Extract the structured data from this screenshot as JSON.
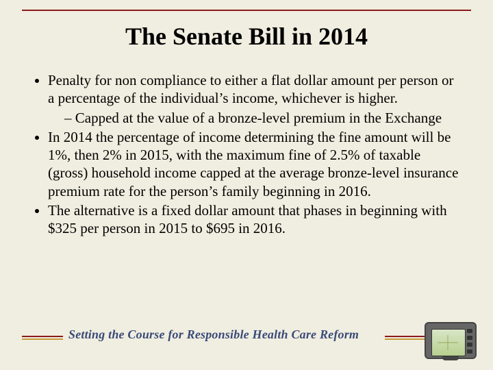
{
  "colors": {
    "background": "#f0eee0",
    "rule_red": "#8a1a1a",
    "rule_gold": "#c79a3a",
    "tagline": "#3a4a78",
    "text": "#000000"
  },
  "typography": {
    "title_family": "Times New Roman",
    "title_size_pt": 36,
    "title_weight": "bold",
    "body_family": "Times New Roman",
    "body_size_pt": 21,
    "tagline_family": "Georgia",
    "tagline_style": "italic bold",
    "tagline_size_pt": 18
  },
  "title": "The Senate Bill in 2014",
  "bullets": [
    {
      "text": "Penalty for non compliance to either a flat dollar amount per person or a percentage of the individual’s income, whichever is higher.",
      "sub": [
        "Capped at the value of a bronze-level premium in the Exchange"
      ]
    },
    {
      "text": "In 2014 the percentage of income determining the fine amount will be 1%, then 2% in 2015, with the maximum fine of  2.5% of taxable (gross) household income capped at the average bronze-level insurance premium rate for the person’s family beginning in 2016."
    },
    {
      "text": "The alternative is a fixed dollar amount that phases in beginning with $325 per person in 2015 to $695 in 2016."
    }
  ],
  "footer": {
    "tagline": "Setting the Course for Responsible Health Care Reform",
    "icon": "gps-navigator"
  }
}
